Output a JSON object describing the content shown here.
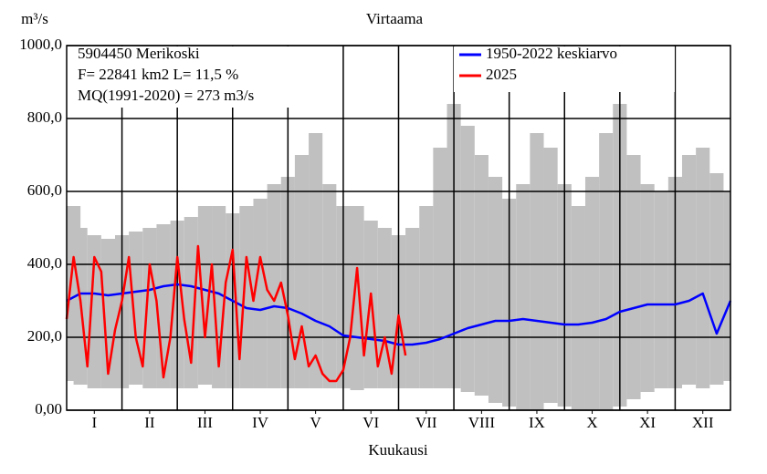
{
  "chart_data": {
    "type": "line",
    "title": "Virtaama",
    "y_label": "m³/s",
    "x_label": "Kuukausi",
    "annotations": [
      "5904450 Merikoski",
      "F=  22841 km2 L=  11,5 %",
      "MQ(1991-2020) = 273 m3/s"
    ],
    "xlim": [
      0,
      12
    ],
    "xticks": [
      {
        "value": 0.5,
        "label": "I"
      },
      {
        "value": 1.5,
        "label": "II"
      },
      {
        "value": 2.5,
        "label": "III"
      },
      {
        "value": 3.5,
        "label": "IV"
      },
      {
        "value": 4.5,
        "label": "V"
      },
      {
        "value": 5.5,
        "label": "VI"
      },
      {
        "value": 6.5,
        "label": "VII"
      },
      {
        "value": 7.5,
        "label": "VIII"
      },
      {
        "value": 8.5,
        "label": "IX"
      },
      {
        "value": 9.5,
        "label": "X"
      },
      {
        "value": 10.5,
        "label": "XI"
      },
      {
        "value": 11.5,
        "label": "XII"
      }
    ],
    "xgrid": [
      1,
      2,
      3,
      4,
      5,
      6,
      7,
      8,
      9,
      10,
      11
    ],
    "ylim": [
      0,
      1000
    ],
    "yticks": [
      {
        "value": 0,
        "label": "0,00"
      },
      {
        "value": 200,
        "label": "200,0"
      },
      {
        "value": 400,
        "label": "400,0"
      },
      {
        "value": 600,
        "label": "600,0"
      },
      {
        "value": 800,
        "label": "800,0"
      },
      {
        "value": 1000,
        "label": "1000,0"
      }
    ],
    "grid": true,
    "legend": "upper right",
    "band": {
      "color": "#c0c0c0",
      "x": [
        0,
        0.25,
        0.5,
        0.75,
        1,
        1.25,
        1.5,
        1.75,
        2,
        2.25,
        2.5,
        2.75,
        3,
        3.25,
        3.5,
        3.75,
        4,
        4.25,
        4.5,
        4.75,
        5,
        5.25,
        5.5,
        5.75,
        6,
        6.25,
        6.5,
        6.75,
        7,
        7.25,
        7.5,
        7.75,
        8,
        8.25,
        8.5,
        8.75,
        9,
        9.25,
        9.5,
        9.75,
        10,
        10.25,
        10.5,
        10.75,
        11,
        11.25,
        11.5,
        11.75,
        12
      ],
      "upper": [
        560,
        500,
        480,
        470,
        480,
        490,
        500,
        510,
        520,
        530,
        560,
        560,
        540,
        560,
        580,
        620,
        640,
        700,
        760,
        620,
        560,
        560,
        520,
        500,
        480,
        500,
        560,
        720,
        840,
        780,
        700,
        640,
        580,
        620,
        760,
        720,
        620,
        560,
        640,
        760,
        840,
        700,
        620,
        600,
        640,
        700,
        720,
        650,
        600
      ],
      "lower": [
        80,
        70,
        60,
        60,
        60,
        70,
        60,
        60,
        60,
        60,
        70,
        60,
        60,
        60,
        60,
        60,
        60,
        60,
        60,
        60,
        60,
        55,
        60,
        60,
        60,
        60,
        60,
        60,
        60,
        50,
        40,
        20,
        10,
        0,
        0,
        20,
        10,
        0,
        0,
        0,
        10,
        30,
        50,
        60,
        60,
        70,
        60,
        70,
        80
      ]
    },
    "series": [
      {
        "name": "1950-2022 keskiarvo",
        "color": "#0000ff",
        "x": [
          0,
          0.25,
          0.5,
          0.75,
          1,
          1.25,
          1.5,
          1.75,
          2,
          2.25,
          2.5,
          2.75,
          3,
          3.25,
          3.5,
          3.75,
          4,
          4.25,
          4.5,
          4.75,
          5,
          5.25,
          5.5,
          5.75,
          6,
          6.25,
          6.5,
          6.75,
          7,
          7.25,
          7.5,
          7.75,
          8,
          8.25,
          8.5,
          8.75,
          9,
          9.25,
          9.5,
          9.75,
          10,
          10.25,
          10.5,
          10.75,
          11,
          11.25,
          11.5,
          11.75,
          12
        ],
        "values": [
          300,
          320,
          320,
          315,
          320,
          325,
          330,
          340,
          345,
          340,
          330,
          320,
          300,
          280,
          275,
          285,
          280,
          265,
          245,
          230,
          205,
          200,
          195,
          190,
          180,
          180,
          185,
          195,
          210,
          225,
          235,
          245,
          245,
          250,
          245,
          240,
          235,
          235,
          240,
          250,
          270,
          280,
          290,
          290,
          290,
          300,
          320,
          210,
          300
        ]
      },
      {
        "name": "2025",
        "color": "#ff0000",
        "x": [
          0,
          0.125,
          0.25,
          0.375,
          0.5,
          0.625,
          0.75,
          0.875,
          1,
          1.125,
          1.25,
          1.375,
          1.5,
          1.625,
          1.75,
          1.875,
          2,
          2.125,
          2.25,
          2.375,
          2.5,
          2.625,
          2.75,
          2.875,
          3,
          3.125,
          3.25,
          3.375,
          3.5,
          3.625,
          3.75,
          3.875,
          4,
          4.125,
          4.25,
          4.375,
          4.5,
          4.625,
          4.75,
          4.875,
          5,
          5.125,
          5.25,
          5.375,
          5.5,
          5.625,
          5.75,
          5.875,
          6,
          6.125
        ],
        "values": [
          250,
          420,
          300,
          120,
          420,
          380,
          100,
          220,
          300,
          420,
          200,
          120,
          400,
          300,
          90,
          200,
          420,
          250,
          130,
          450,
          200,
          400,
          120,
          350,
          440,
          140,
          420,
          300,
          420,
          330,
          300,
          350,
          260,
          140,
          230,
          120,
          150,
          100,
          80,
          80,
          110,
          200,
          390,
          150,
          320,
          120,
          200,
          100,
          260,
          150
        ]
      }
    ]
  }
}
